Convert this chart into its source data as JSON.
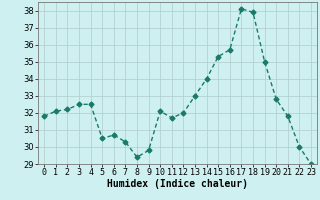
{
  "x": [
    0,
    1,
    2,
    3,
    4,
    5,
    6,
    7,
    8,
    9,
    10,
    11,
    12,
    13,
    14,
    15,
    16,
    17,
    18,
    19,
    20,
    21,
    22,
    23
  ],
  "y": [
    31.8,
    32.1,
    32.2,
    32.5,
    32.5,
    30.5,
    30.7,
    30.3,
    29.4,
    29.8,
    32.1,
    31.7,
    32.0,
    33.0,
    34.0,
    35.3,
    35.7,
    38.1,
    37.9,
    35.0,
    32.8,
    31.8,
    30.0,
    29.0
  ],
  "line_color": "#1a7a6a",
  "marker": "D",
  "marker_size": 2.5,
  "line_width": 1.0,
  "bg_color": "#cff0f0",
  "grid_color": "#b0cccc",
  "xlabel": "Humidex (Indice chaleur)",
  "xlim": [
    -0.5,
    23.5
  ],
  "ylim": [
    29,
    38.5
  ],
  "yticks": [
    29,
    30,
    31,
    32,
    33,
    34,
    35,
    36,
    37,
    38
  ],
  "xticks": [
    0,
    1,
    2,
    3,
    4,
    5,
    6,
    7,
    8,
    9,
    10,
    11,
    12,
    13,
    14,
    15,
    16,
    17,
    18,
    19,
    20,
    21,
    22,
    23
  ],
  "label_fontsize": 7,
  "tick_fontsize": 6
}
